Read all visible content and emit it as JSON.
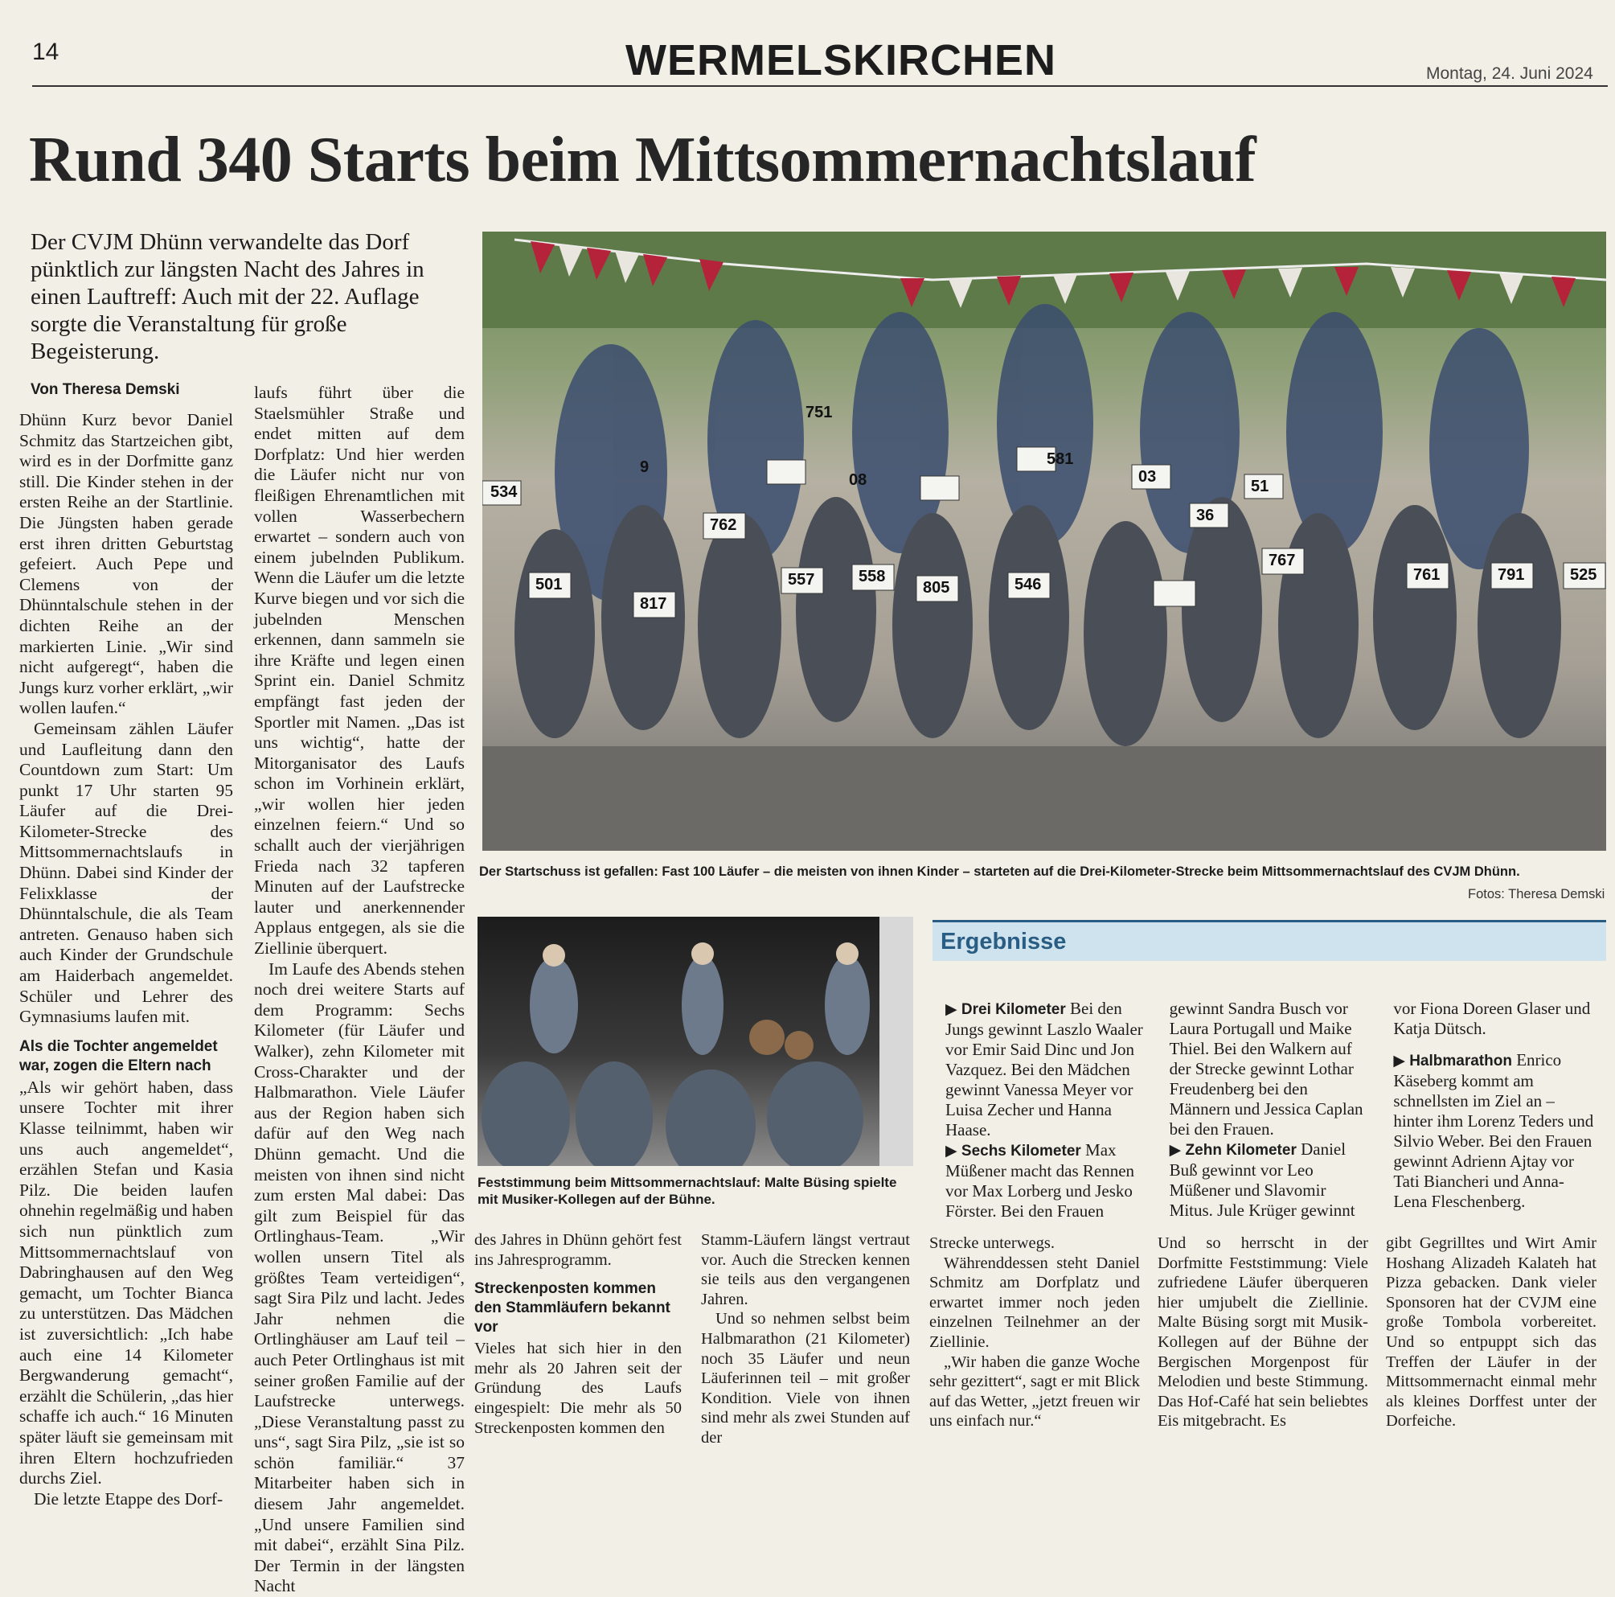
{
  "header": {
    "page_number": "14",
    "section": "WERMELSKIRCHEN",
    "date": "Montag, 24. Juni 2024"
  },
  "headline": "Rund 340 Starts beim Mittsommernachtslauf",
  "lead": "Der CVJM Dhünn verwandelte das Dorf pünktlich zur längsten Nacht des Jahres in einen Lauftreff: Auch mit der 22. Auflage sorgte die Veranstaltung für große Begeisterung.",
  "byline": "Von Theresa Demski",
  "col1": {
    "p1": "Dhünn Kurz bevor Daniel Schmitz das Startzeichen gibt, wird es in der Dorfmitte ganz still. Die Kinder stehen in der ersten Reihe an der Startlinie. Die Jüngsten haben gerade erst ihren dritten Geburtstag gefeiert. Auch Pepe und Clemens von der Dhünntalschule stehen in der dichten Reihe an der markierten Linie. „Wir sind nicht aufgeregt“, haben die Jungs kurz vorher erklärt, „wir wollen laufen.“",
    "p2": "Gemeinsam zählen Läufer und Laufleitung dann den Countdown zum Start: Um punkt 17 Uhr starten 95 Läufer auf die Drei-Kilometer-Strecke des Mittsommernachtslaufs in Dhünn. Dabei sind Kinder der Felixklasse der Dhünntalschule, die als Team antreten. Genauso haben sich auch Kinder der Grundschule am Haiderbach angemeldet. Schüler und Lehrer des Gymnasiums laufen mit.",
    "sub": "Als die Tochter angemeldet war, zogen die Eltern nach",
    "p3": "„Als wir gehört haben, dass unsere Tochter mit ihrer Klasse teilnimmt, haben wir uns auch angemeldet“, erzählen Stefan und Kasia Pilz. Die beiden laufen ohnehin regelmäßig und haben sich nun pünktlich zum Mittsommernachtslauf von Dabringhausen auf den Weg gemacht, um Tochter Bianca zu unterstützen. Das Mädchen ist zuversichtlich: „Ich habe auch eine 14 Kilometer Bergwanderung gemacht“, erzählt die Schülerin, „das hier schaffe ich auch.“ 16 Minuten später läuft sie gemeinsam mit ihren Eltern hochzufrieden durchs Ziel.",
    "p4": "Die letzte Etappe des Dorf-"
  },
  "col2": {
    "p1": "laufs führt über die Staelsmühler Straße und endet mitten auf dem Dorfplatz: Und hier werden die Läufer nicht nur von fleißigen Ehrenamtlichen mit vollen Wasserbechern erwartet – sondern auch von einem jubelnden Publikum. Wenn die Läufer um die letzte Kurve biegen und vor sich die jubelnden Menschen erkennen, dann sammeln sie ihre Kräfte und legen einen Sprint ein. Daniel Schmitz empfängt fast jeden der Sportler mit Namen. „Das ist uns wichtig“, hatte der Mitorganisator des Laufs schon im Vorhinein erklärt, „wir wollen hier jeden einzelnen feiern.“ Und so schallt auch der vierjährigen Frieda nach 32 tapferen Minuten auf der Laufstrecke lauter und anerkennender Applaus entgegen, als sie die Ziellinie überquert.",
    "p2": "Im Laufe des Abends stehen noch drei weitere Starts auf dem Programm: Sechs Kilometer (für Läufer und Walker), zehn Kilometer mit Cross-Charakter und der Halbmarathon. Viele Läufer aus der Region haben sich dafür auf den Weg nach Dhünn gemacht. Und die meisten von ihnen sind nicht zum ersten Mal dabei: Das gilt zum Beispiel für das Ortlinghaus-Team. „Wir wollen unsern Titel als größtes Team verteidigen“, sagt Sira Pilz und lacht. Jedes Jahr nehmen die Ortlinghäuser am Lauf teil – auch Peter Ortlinghaus ist mit seiner großen Familie auf der Laufstrecke unterwegs. „Diese Veranstaltung passt zu uns“, sagt Sira Pilz, „sie ist so schön familiär.“ 37 Mitarbeiter haben sich in diesem Jahr angemeldet. „Und unsere Familien sind mit dabei“, erzählt Sina Pilz. Der Termin in der längsten Nacht"
  },
  "col3": {
    "p1": "des Jahres in Dhünn gehört fest ins Jahresprogramm.",
    "sub": "Streckenposten kommen den Stammläufern bekannt vor",
    "p2": "Vieles hat sich hier in den mehr als 20 Jahren seit der Gründung des Laufs eingespielt: Die mehr als 50 Streckenposten kommen den"
  },
  "col4": {
    "p1": "Stamm-Läufern längst vertraut vor. Auch die Strecken kennen sie teils aus den vergangenen Jahren.",
    "p2": "Und so nehmen selbst beim Halbmarathon (21 Kilometer) noch 35 Läufer und neun Läuferinnen teil – mit großer Kondition. Viele von ihnen sind mehr als zwei Stunden auf der"
  },
  "col5": {
    "p1": "Strecke unterwegs.",
    "p2": "Währenddessen steht Daniel Schmitz am Dorfplatz und erwartet immer noch jeden einzelnen Teilnehmer an der Ziellinie.",
    "p3": "„Wir haben die ganze Woche sehr gezittert“, sagt er mit Blick auf das Wetter, „jetzt freuen wir uns einfach nur.“"
  },
  "col6": {
    "p1": "Und so herrscht in der Dorfmitte Feststimmung: Viele zufriedene Läufer überqueren hier umjubelt die Ziellinie. Malte Büsing sorgt mit Musik-Kollegen auf der Bühne der Bergischen Morgenpost für Melodien und beste Stimmung. Das Hof-Café hat sein beliebtes Eis mitgebracht. Es"
  },
  "col7": {
    "p1": "gibt Gegrilltes und Wirt Amir Hoshang Alizadeh Kalateh hat Pizza gebacken. Dank vieler Sponsoren hat der CVJM eine große Tombola vorbereitet. Und so entpuppt sich das Treffen der Läufer in der Mittsommernacht einmal mehr als kleines Dorffest unter der Dorfeiche."
  },
  "photo_main": {
    "caption": "Der Startschuss ist gefallen: Fast 100 Läufer – die meisten von ihnen Kinder – starteten auf die Drei-Kilometer-Strecke beim Mittsommernachtslauf des CVJM Dhünn.",
    "credit": "Fotos: Theresa Demski",
    "bibs": [
      "534",
      "501",
      "817",
      "762",
      "557",
      "08",
      "558",
      "805",
      "546",
      "581",
      "03",
      "36",
      "767",
      "51",
      "761",
      "791",
      "525",
      "751",
      "9"
    ]
  },
  "photo_band": {
    "caption": "Feststimmung beim Mittsommernachtslauf: Malte Büsing spielte mit Musiker-Kollegen auf der Bühne."
  },
  "results": {
    "title": "Ergebnisse",
    "items": [
      {
        "label": "Drei Kilometer",
        "text": "Bei den Jungs gewinnt Laszlo Waaler vor Emir Said Dinc und Jon Vazquez. Bei den Mädchen gewinnt Vanessa Meyer vor Luisa Zecher und Hanna Haase."
      },
      {
        "label": "Sechs Kilometer",
        "text": "Max Müßener macht das Rennen vor Max Lorberg und Jesko Förster. Bei den Frauen gewinnt Sandra Busch vor Laura Portugall und Maike Thiel. Bei den Walkern auf der Strecke gewinnt Lothar Freudenberg bei den Männern und Jessica Caplan bei den Frauen."
      },
      {
        "label": "Zehn Kilometer",
        "text": "Daniel Buß gewinnt vor Leo Müßener und Slavomir Mitus. Jule Krüger gewinnt vor Fiona Doreen Glaser und Katja Dütsch."
      },
      {
        "label": "Halbmarathon",
        "text": "Enrico Käseberg kommt am schnellsten im Ziel an – hinter ihm Lorenz Teders und Silvio Weber. Bei den Frauen gewinnt Adrienn Ajtay vor Tati Biancheri und Anna-Lena Fleschenberg."
      }
    ]
  },
  "colors": {
    "paper": "#f1efe6",
    "results_header_bg": "#cfe3ee",
    "results_title": "#2a5d83",
    "ink": "#1d1d1d"
  }
}
